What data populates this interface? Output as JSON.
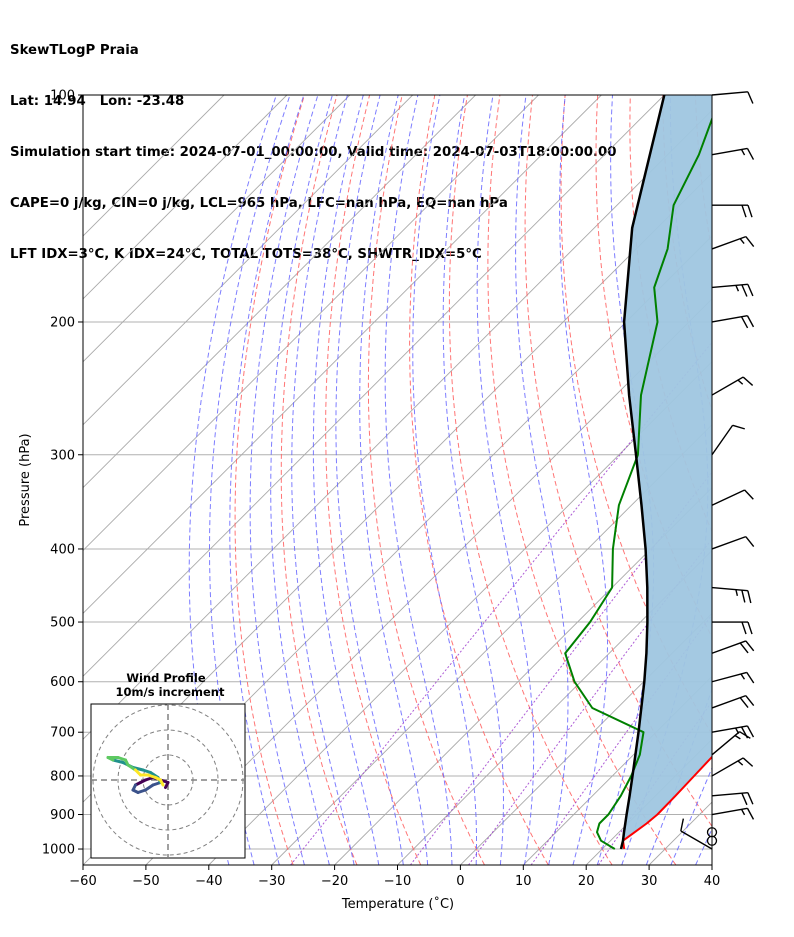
{
  "title": {
    "line1": "SkewTLogP Praia",
    "line2": "Lat: 14.94   Lon: -23.48",
    "line3": "Simulation start time: 2024-07-01_00:00:00, Valid time: 2024-07-03T18:00:00.00",
    "line4": "CAPE=0 j/kg, CIN=0 j/kg, LCL=965 hPa, LFC=nan hPa, EQ=nan hPa",
    "line5": "LFT IDX=3°C, K IDX=24°C, TOTAL TOTS=38°C, SHWTR_IDX=5°C"
  },
  "hodograph": {
    "title": "Wind Profile",
    "subtitle": "10m/s increment",
    "rings_ms": [
      10,
      20,
      30
    ],
    "trace": [
      [
        -1,
        -3
      ],
      [
        0,
        -1
      ],
      [
        -3,
        0
      ],
      [
        -6,
        1
      ],
      [
        -9,
        0
      ],
      [
        -11,
        -1
      ],
      [
        -13,
        -2
      ],
      [
        -14,
        -4
      ],
      [
        -12,
        -5
      ],
      [
        -9,
        -4
      ],
      [
        -6,
        -2
      ],
      [
        -3,
        -1
      ],
      [
        -4,
        1
      ],
      [
        -7,
        3
      ],
      [
        -10,
        4
      ],
      [
        -14,
        5
      ],
      [
        -18,
        7
      ],
      [
        -22,
        8
      ],
      [
        -24,
        9
      ],
      [
        -20,
        9
      ],
      [
        -17,
        8
      ],
      [
        -16,
        6
      ],
      [
        -13,
        4
      ],
      [
        -11,
        2
      ],
      [
        -8,
        2
      ],
      [
        -5,
        1
      ],
      [
        -3,
        0
      ],
      [
        -2,
        -2
      ]
    ],
    "trace_colors": [
      "#440154",
      "#3b528b",
      "#21918c",
      "#5ec962",
      "#fde725"
    ]
  },
  "chart_data": {
    "type": "line",
    "title": "",
    "xlabel": "Temperature (˚C)",
    "ylabel": "Pressure (hPa)",
    "xlim": [
      -60,
      40
    ],
    "ylim": [
      1050,
      100
    ],
    "yscale": "log",
    "skew_deg": 45,
    "x_ticks": [
      -60,
      -50,
      -40,
      -30,
      -20,
      -10,
      0,
      10,
      20,
      30,
      40
    ],
    "x_tick_labels": [
      "−60",
      "−50",
      "−40",
      "−30",
      "−20",
      "−10",
      "0",
      "10",
      "20",
      "30",
      "40"
    ],
    "y_ticks": [
      1000,
      900,
      800,
      700,
      600,
      500,
      400,
      300,
      200,
      100
    ],
    "grid": true,
    "colors": {
      "temperature": "#ff0000",
      "dewpoint": "#008000",
      "parcel": "#000000",
      "cape_fill": "#9fc6e0",
      "dry_adiabat": "#ff6666",
      "moist_adiabat": "#6666ff",
      "mixing_ratio": "#9933cc",
      "isotherm": "#a9a9a9"
    },
    "series": [
      {
        "name": "Temperature",
        "points": [
          [
            1000,
            23.5
          ],
          [
            975,
            22
          ],
          [
            950,
            22.5
          ],
          [
            925,
            23
          ],
          [
            900,
            23.3
          ],
          [
            850,
            23.2
          ],
          [
            800,
            23
          ],
          [
            750,
            22.8
          ],
          [
            700,
            22.2
          ],
          [
            650,
            20
          ],
          [
            600,
            16
          ],
          [
            550,
            13
          ],
          [
            500,
            10
          ],
          [
            450,
            6
          ],
          [
            400,
            0
          ],
          [
            350,
            -6.5
          ],
          [
            300,
            -14
          ],
          [
            250,
            -22
          ],
          [
            200,
            -32
          ],
          [
            180,
            -37
          ],
          [
            160,
            -42
          ],
          [
            140,
            -49
          ],
          [
            120,
            -56
          ],
          [
            100,
            -66
          ]
        ]
      },
      {
        "name": "Dewpoint",
        "points": [
          [
            1000,
            22
          ],
          [
            975,
            18.5
          ],
          [
            950,
            16.5
          ],
          [
            925,
            15.5
          ],
          [
            900,
            15.5
          ],
          [
            850,
            14.5
          ],
          [
            800,
            13
          ],
          [
            750,
            11
          ],
          [
            700,
            8
          ],
          [
            650,
            -4
          ],
          [
            600,
            -11
          ],
          [
            550,
            -17
          ],
          [
            500,
            -18
          ],
          [
            450,
            -20
          ],
          [
            400,
            -26
          ],
          [
            350,
            -32
          ],
          [
            300,
            -37
          ],
          [
            250,
            -46
          ],
          [
            200,
            -55
          ],
          [
            180,
            -61
          ],
          [
            160,
            -65
          ],
          [
            140,
            -71
          ],
          [
            120,
            -75
          ],
          [
            100,
            -81
          ]
        ]
      },
      {
        "name": "Parcel",
        "points": [
          [
            1000,
            23
          ],
          [
            975,
            22
          ],
          [
            950,
            20.8
          ],
          [
            900,
            18.4
          ],
          [
            850,
            15.9
          ],
          [
            800,
            13.2
          ],
          [
            750,
            10.3
          ],
          [
            700,
            7.2
          ],
          [
            650,
            3.8
          ],
          [
            600,
            0.1
          ],
          [
            550,
            -4.1
          ],
          [
            500,
            -8.9
          ],
          [
            450,
            -14.4
          ],
          [
            400,
            -20.8
          ],
          [
            350,
            -28.4
          ],
          [
            300,
            -37.3
          ],
          [
            250,
            -47.9
          ],
          [
            200,
            -60.3
          ],
          [
            150,
            -74
          ],
          [
            100,
            -90
          ]
        ]
      }
    ],
    "wind_barbs": [
      {
        "p": 1000,
        "speed_kt": 10,
        "dir_deg": 300
      },
      {
        "p": 975,
        "speed_kt": 0,
        "dir_deg": 0
      },
      {
        "p": 950,
        "speed_kt": 0,
        "dir_deg": 0
      },
      {
        "p": 900,
        "speed_kt": 15,
        "dir_deg": 80
      },
      {
        "p": 850,
        "speed_kt": 20,
        "dir_deg": 85
      },
      {
        "p": 800,
        "speed_kt": 15,
        "dir_deg": 60
      },
      {
        "p": 750,
        "speed_kt": 15,
        "dir_deg": 50
      },
      {
        "p": 700,
        "speed_kt": 25,
        "dir_deg": 80
      },
      {
        "p": 650,
        "speed_kt": 20,
        "dir_deg": 70
      },
      {
        "p": 600,
        "speed_kt": 15,
        "dir_deg": 75
      },
      {
        "p": 550,
        "speed_kt": 20,
        "dir_deg": 70
      },
      {
        "p": 500,
        "speed_kt": 20,
        "dir_deg": 90
      },
      {
        "p": 450,
        "speed_kt": 25,
        "dir_deg": 95
      },
      {
        "p": 400,
        "speed_kt": 10,
        "dir_deg": 70
      },
      {
        "p": 350,
        "speed_kt": 10,
        "dir_deg": 65
      },
      {
        "p": 300,
        "speed_kt": 10,
        "dir_deg": 35
      },
      {
        "p": 250,
        "speed_kt": 15,
        "dir_deg": 60
      },
      {
        "p": 200,
        "speed_kt": 20,
        "dir_deg": 80
      },
      {
        "p": 180,
        "speed_kt": 25,
        "dir_deg": 85
      },
      {
        "p": 160,
        "speed_kt": 15,
        "dir_deg": 70
      },
      {
        "p": 140,
        "speed_kt": 20,
        "dir_deg": 90
      },
      {
        "p": 120,
        "speed_kt": 15,
        "dir_deg": 80
      },
      {
        "p": 100,
        "speed_kt": 10,
        "dir_deg": 85
      }
    ]
  }
}
